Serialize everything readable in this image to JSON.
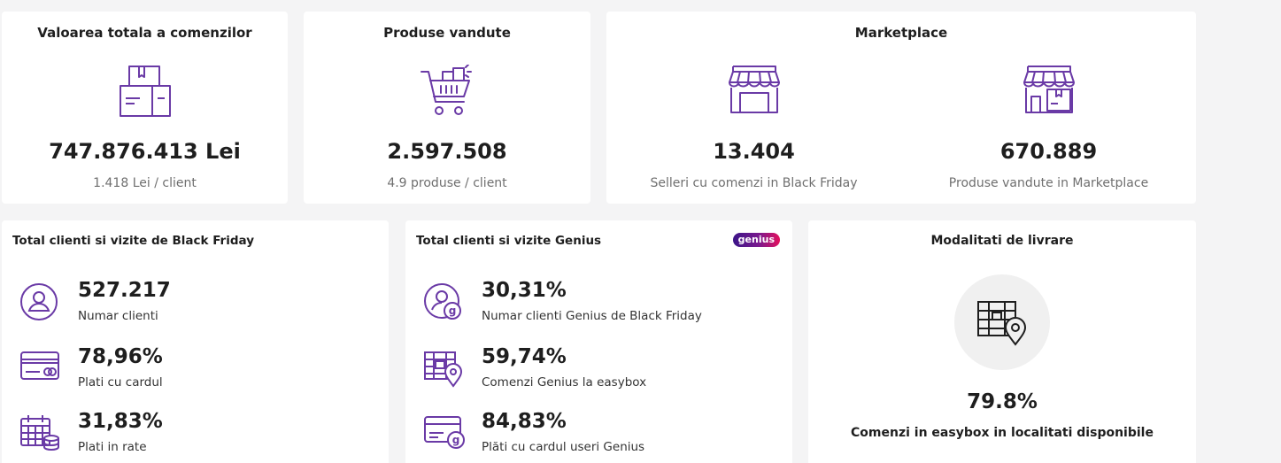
{
  "summary": {
    "valoarea": {
      "title": "Valoarea totala a comenzilor",
      "icon": "boxes-icon",
      "value": "747.876.413 Lei",
      "sub": "1.418 Lei / client"
    },
    "produse": {
      "title": "Produse vandute",
      "icon": "shopping-cart-icon",
      "value": "2.597.508",
      "sub": "4.9 produse / client"
    },
    "marketplace": {
      "title": "Marketplace",
      "left": {
        "icon": "storefront-icon",
        "value": "13.404",
        "sub": "Selleri cu comenzi in Black Friday"
      },
      "right": {
        "icon": "store-products-icon",
        "value": "670.889",
        "sub": "Produse vandute in Marketplace"
      }
    }
  },
  "clienti": {
    "title": "Total clienti si vizite de Black Friday",
    "stats": [
      {
        "icon": "user-icon",
        "value": "527.217",
        "label": "Numar clienti"
      },
      {
        "icon": "credit-card-icon",
        "value": "78,96%",
        "label": "Plati cu cardul"
      },
      {
        "icon": "calendar-coins-icon",
        "value": "31,83%",
        "label": "Plati in rate"
      }
    ]
  },
  "genius": {
    "title": "Total clienti si vizite Genius",
    "badge": "genius",
    "stats": [
      {
        "icon": "genius-user-icon",
        "value": "30,31%",
        "label": "Numar clienti Genius de Black Friday"
      },
      {
        "icon": "easybox-location-icon",
        "value": "59,74%",
        "label": "Comenzi Genius la easybox"
      },
      {
        "icon": "genius-card-icon",
        "value": "84,83%",
        "label": "Plăti cu cardul useri Genius"
      }
    ]
  },
  "livrare": {
    "title": "Modalitati de livrare",
    "icon": "easybox-location-icon",
    "value": "79.8%",
    "label": "Comenzi in easybox in localitati disponibile"
  },
  "colors": {
    "accent": "#6a3aa6",
    "background": "#f4f4f5",
    "card": "#ffffff",
    "text": "#1e1e1e",
    "muted": "#6f6f6f"
  }
}
